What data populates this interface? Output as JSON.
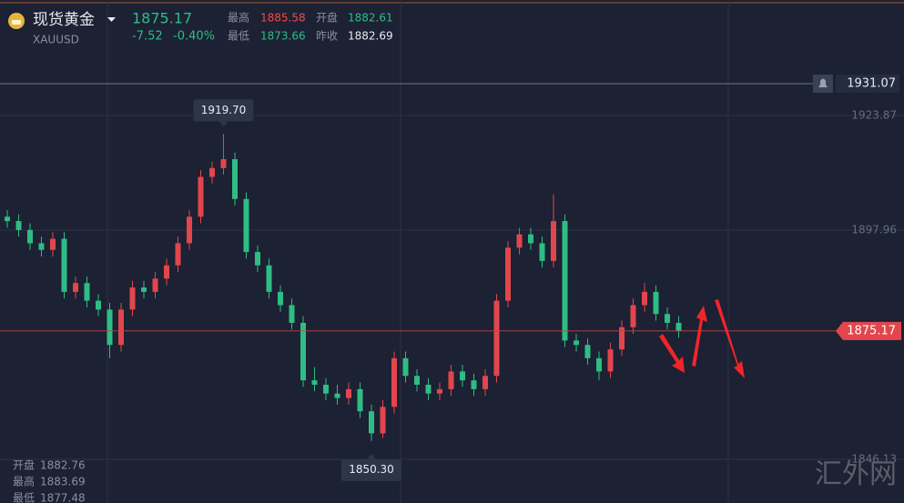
{
  "quote": {
    "name": "现货黄金",
    "symbol": "XAUUSD",
    "price": 1875.17,
    "change": "-7.52",
    "change_pct": "-0.40%",
    "high_label": "最高",
    "high": 1885.58,
    "open_label": "开盘",
    "open": 1882.61,
    "low_label": "最低",
    "low": 1873.66,
    "prev_close_label": "昨收",
    "prev_close": 1882.69
  },
  "bar_info": {
    "open_label": "开盘",
    "open": 1882.76,
    "high_label": "最高",
    "high": 1883.69,
    "low_label": "最低",
    "low": 1877.48
  },
  "watermark": "汇外网",
  "chart_data": {
    "type": "candlestick",
    "up_color": "#e2464d",
    "down_color": "#2ebd85",
    "open": [
      1901,
      1900,
      1898,
      1895,
      1893.5,
      1896,
      1884,
      1886,
      1882,
      1880,
      1872,
      1880,
      1885,
      1884,
      1887,
      1890,
      1895,
      1901,
      1910,
      1912,
      1914,
      1905,
      1893,
      1890,
      1884,
      1881,
      1877,
      1864,
      1863,
      1861,
      1860,
      1862,
      1857,
      1852,
      1858,
      1869,
      1865,
      1863,
      1861,
      1862,
      1866,
      1864,
      1862,
      1865,
      1882,
      1894,
      1897,
      1895,
      1891,
      1900,
      1873,
      1872,
      1869,
      1866,
      1871,
      1876,
      1881,
      1884,
      1879,
      1877
    ],
    "high": [
      1902.5,
      1901.5,
      1899.5,
      1896.5,
      1897.5,
      1897.5,
      1887.5,
      1887.5,
      1883.5,
      1881.5,
      1881.5,
      1886.5,
      1886.5,
      1888.5,
      1891.5,
      1896.5,
      1902.5,
      1911.5,
      1913.5,
      1919.7,
      1915.5,
      1906.5,
      1894.5,
      1891.5,
      1885.5,
      1882.5,
      1878.5,
      1867,
      1864.5,
      1863,
      1863.5,
      1863.5,
      1858.5,
      1859.5,
      1870.5,
      1870.5,
      1866.5,
      1864.5,
      1863.5,
      1867.5,
      1867.5,
      1865.5,
      1866.5,
      1883.5,
      1895.5,
      1898.5,
      1898.5,
      1896.5,
      1906,
      1901.5,
      1874.5,
      1873.5,
      1870.5,
      1872.5,
      1877.5,
      1882.5,
      1886,
      1885.5,
      1880.5,
      1878.5
    ],
    "low": [
      1898.5,
      1896.5,
      1893.5,
      1892,
      1892,
      1882.5,
      1882.5,
      1880.5,
      1878.5,
      1869,
      1870.5,
      1878.5,
      1882.5,
      1882.5,
      1885.5,
      1888.5,
      1893.5,
      1899.5,
      1908.5,
      1910.5,
      1903.5,
      1891.5,
      1888.5,
      1882.5,
      1879.5,
      1875.5,
      1862.5,
      1861.5,
      1859.5,
      1858.5,
      1858.5,
      1855.5,
      1850.3,
      1851,
      1856.5,
      1863.5,
      1861.5,
      1859.5,
      1859.5,
      1860.5,
      1862.5,
      1860.5,
      1860.5,
      1863.5,
      1880.5,
      1892.5,
      1893.5,
      1889.5,
      1889.5,
      1871.5,
      1870.5,
      1867.5,
      1864,
      1864.5,
      1869.5,
      1874.5,
      1879.5,
      1877.5,
      1875.5,
      1873.66
    ],
    "close": [
      1900,
      1898,
      1895,
      1893.5,
      1896,
      1884,
      1886,
      1882,
      1880,
      1872,
      1880,
      1885,
      1884,
      1887,
      1890,
      1895,
      1901,
      1910,
      1912,
      1914,
      1905,
      1893,
      1890,
      1884,
      1881,
      1877,
      1864,
      1863,
      1861,
      1860,
      1862,
      1857,
      1852,
      1858,
      1869,
      1865,
      1863,
      1861,
      1862,
      1866,
      1864,
      1862,
      1865,
      1882,
      1894,
      1897,
      1895,
      1891,
      1900,
      1873,
      1872,
      1869,
      1866,
      1871,
      1876,
      1881,
      1884,
      1879,
      1877,
      1875.17
    ],
    "max_label": "1919.70",
    "min_label": "1850.30",
    "last_price": 1875.17,
    "alert_price": 1931.07,
    "ylim": [
      1836.26,
      1950.0
    ],
    "yticks": [
      1923.87,
      1897.96,
      1846.13
    ],
    "grid": true
  }
}
